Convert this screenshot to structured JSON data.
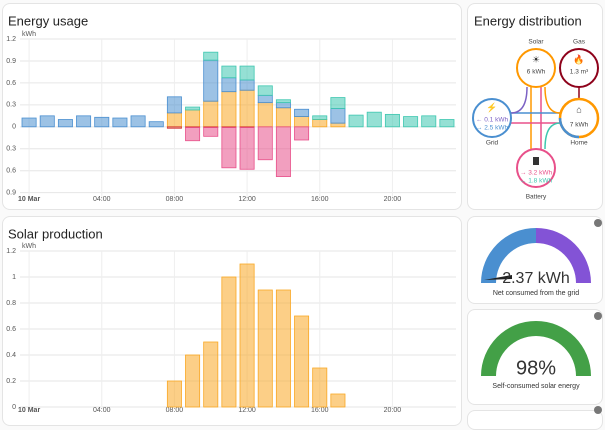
{
  "chart_data": [
    {
      "type": "bar",
      "title": "Energy usage",
      "ylabel": "kWh",
      "categories": [
        "10 Mar",
        null,
        null,
        null,
        "04:00",
        null,
        null,
        null,
        "08:00",
        null,
        null,
        null,
        "12:00",
        null,
        null,
        null,
        "16:00",
        null,
        null,
        null,
        "20:00",
        null,
        null,
        null
      ],
      "ylim": [
        -1.0,
        1.2
      ],
      "yticks": [
        1.2,
        0.9,
        0.6,
        0.3,
        0,
        {
          "value": -0.3,
          "label": "0.3"
        },
        {
          "value": -0.6,
          "label": "0.6"
        },
        {
          "value": -0.9,
          "label": "0.9"
        }
      ],
      "grid": true,
      "stacked": true,
      "series": [
        {
          "color": "#f9a825",
          "values": [
            0,
            0,
            0,
            0,
            0,
            0,
            0,
            0,
            0.19,
            0.23,
            0.35,
            0.48,
            0.5,
            0.33,
            0.26,
            0.14,
            0.1,
            0.05,
            0,
            0,
            0,
            0,
            0,
            0
          ]
        },
        {
          "color": "#4a8fd0",
          "values": [
            0.12,
            0.15,
            0.1,
            0.15,
            0.13,
            0.12,
            0.15,
            0.07,
            0.22,
            0,
            0.56,
            0.19,
            0.14,
            0.1,
            0.07,
            0.1,
            0,
            0.2,
            0,
            0,
            0,
            0,
            0,
            0
          ]
        },
        {
          "color": "#3ec7b0",
          "values": [
            0,
            0,
            0,
            0,
            0,
            0,
            0,
            0,
            0,
            0.04,
            0.11,
            0.16,
            0.19,
            0.13,
            0.04,
            0,
            0.05,
            0.15,
            0.16,
            0.2,
            0.17,
            0.14,
            0.15,
            0.1
          ]
        },
        {
          "color": "#d43c3c",
          "values": [
            0,
            0,
            0,
            0,
            0,
            0,
            0,
            0,
            -0.02,
            -0.01,
            -0.01,
            -0.01,
            -0.01,
            0,
            0,
            0,
            0,
            0,
            0,
            0,
            0,
            0,
            0,
            0
          ]
        },
        {
          "color": "#e8508a",
          "values": [
            0,
            0,
            0,
            0,
            0,
            0,
            0,
            0,
            0,
            -0.18,
            -0.12,
            -0.55,
            -0.57,
            -0.45,
            -0.68,
            -0.18,
            0,
            0,
            0,
            0,
            0,
            0,
            0,
            0
          ]
        }
      ]
    },
    {
      "type": "bar",
      "title": "Solar production",
      "ylabel": "kWh",
      "categories": [
        "10 Mar",
        null,
        null,
        null,
        "04:00",
        null,
        null,
        null,
        "08:00",
        null,
        null,
        null,
        "12:00",
        null,
        null,
        null,
        "16:00",
        null,
        null,
        null,
        "20:00",
        null,
        null,
        null
      ],
      "ylim": [
        0,
        1.2
      ],
      "yticks": [
        1.2,
        1,
        0.8,
        0.6,
        0.4,
        0.2,
        0
      ],
      "grid": true,
      "stacked": true,
      "series": [
        {
          "color": "#f9a825",
          "values": [
            0,
            0,
            0,
            0,
            0,
            0,
            0,
            0,
            0.2,
            0.4,
            0.5,
            1.0,
            1.1,
            0.9,
            0.9,
            0.7,
            0.3,
            0.1,
            0,
            0,
            0,
            0,
            0,
            0
          ]
        }
      ]
    }
  ],
  "distribution": {
    "title": "Energy distribution",
    "solar": {
      "label": "Solar",
      "value": "6 kWh"
    },
    "gas": {
      "label": "Gas",
      "value": "1.3 m³"
    },
    "grid": {
      "label": "Grid",
      "in": "← 0.1 kWh",
      "out": "→ 2.5 kWh"
    },
    "home": {
      "label": "Home",
      "value": "7 kWh"
    },
    "battery": {
      "label": "Battery",
      "in": "→ 3.2 kWh",
      "out": "← 1.8 kWh"
    }
  },
  "gauges": [
    {
      "value": "2.37 kWh",
      "caption": "Net consumed from the grid"
    },
    {
      "value": "98%",
      "caption": "Self-consumed solar energy"
    }
  ]
}
